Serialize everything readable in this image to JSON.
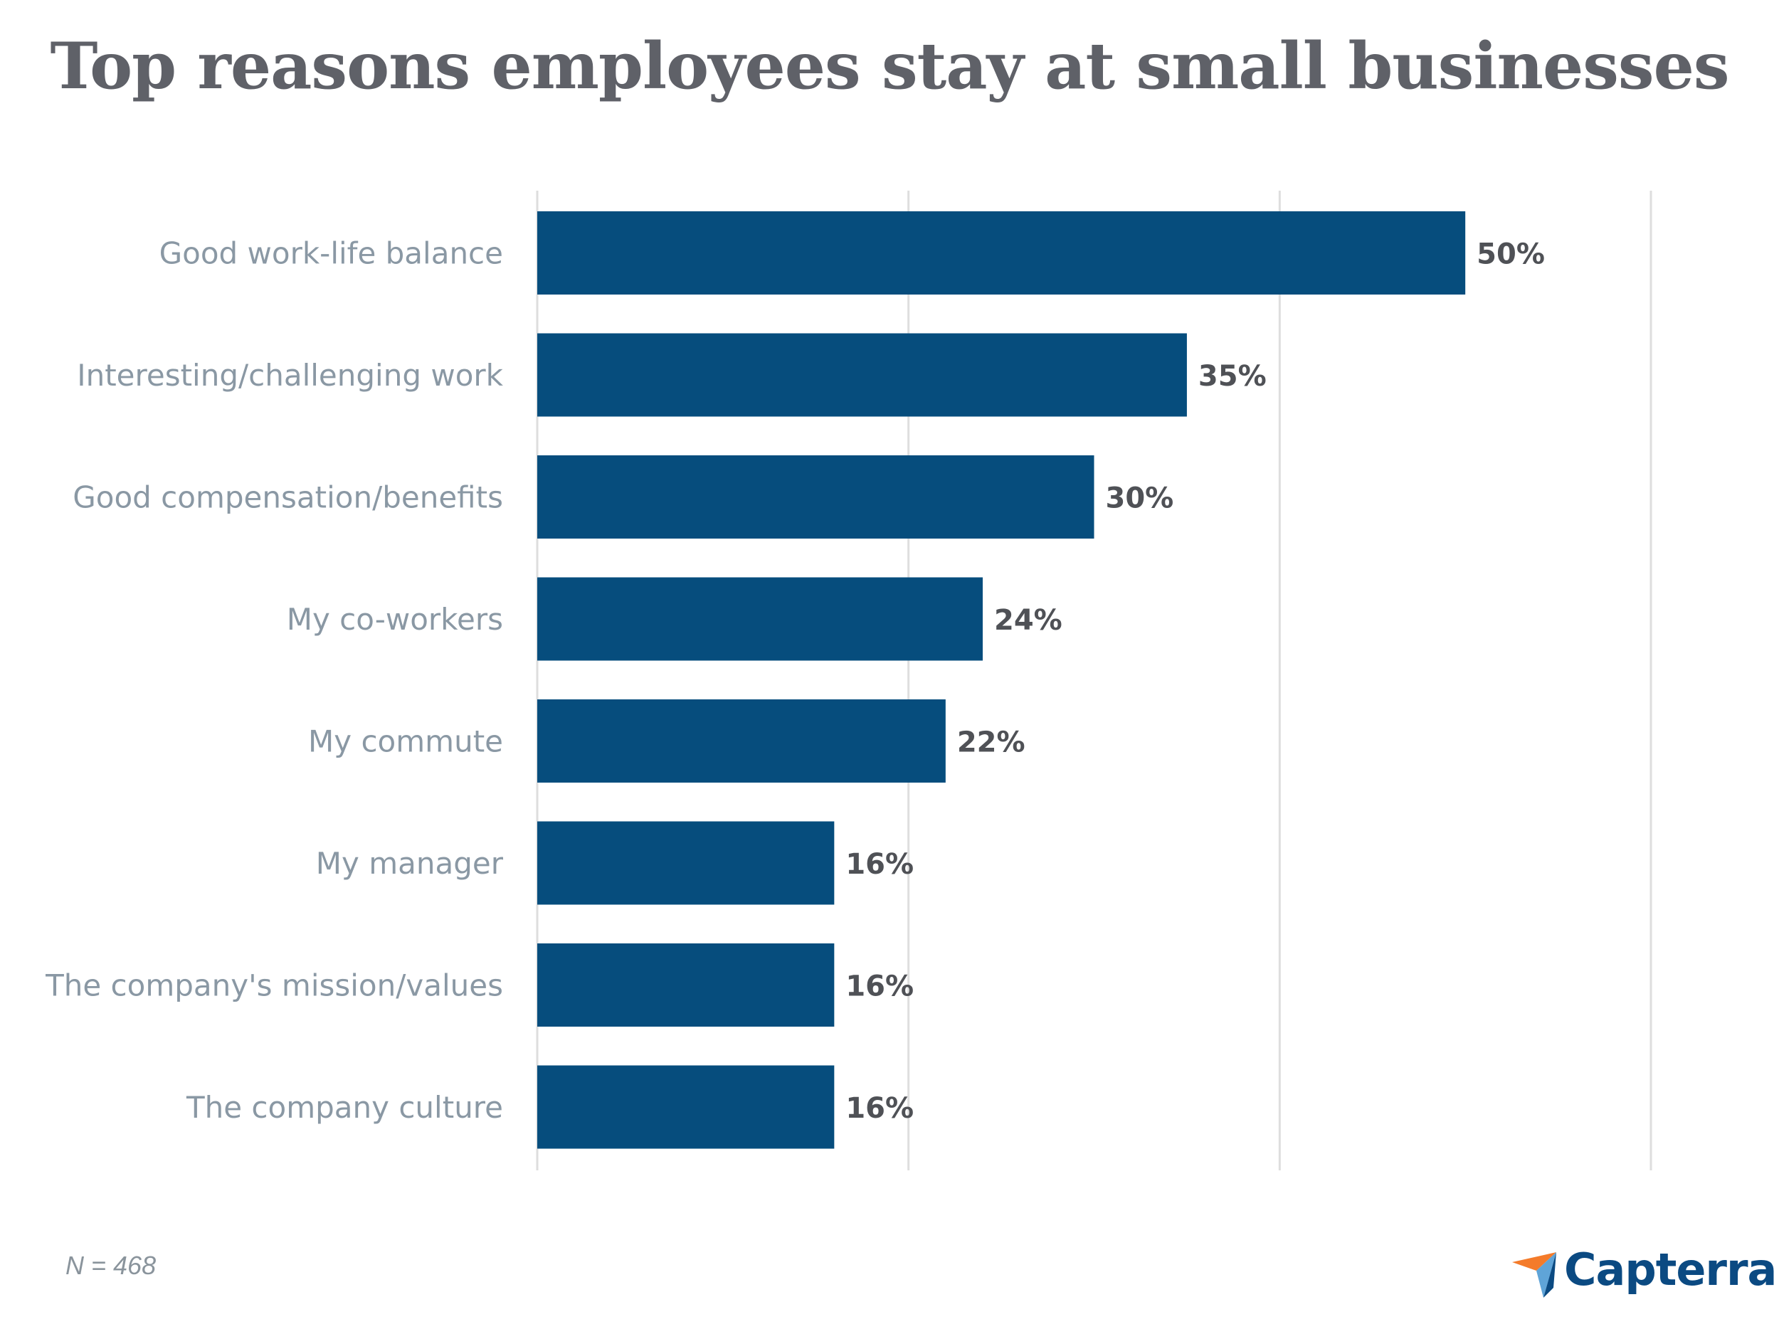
{
  "chart_data": {
    "type": "bar",
    "orientation": "horizontal",
    "title": "Top reasons employees stay at small businesses",
    "categories": [
      "Good work-life balance",
      "Interesting/challenging work",
      "Good compensation/benefits",
      "My co-workers",
      "My commute",
      "My manager",
      "The company's mission/values",
      "The company culture"
    ],
    "values": [
      50,
      35,
      30,
      24,
      22,
      16,
      16,
      16
    ],
    "value_labels": [
      "50%",
      "35%",
      "30%",
      "24%",
      "22%",
      "16%",
      "16%",
      "16%"
    ],
    "xlim": [
      0,
      60
    ],
    "gridlines_at": [
      0,
      20,
      40,
      60
    ],
    "grid": true,
    "legend": "none",
    "colors": {
      "bar": "#064d7d",
      "category_label": "#8a98a4",
      "value_label": "#4f5156",
      "title": "#5f6168",
      "grid": "#dedede"
    }
  },
  "footnote": "N = 468",
  "brand": {
    "name": "Capterra",
    "logo_colors": [
      "#f47b2a",
      "#5fa4d8",
      "#0b4a82"
    ]
  }
}
